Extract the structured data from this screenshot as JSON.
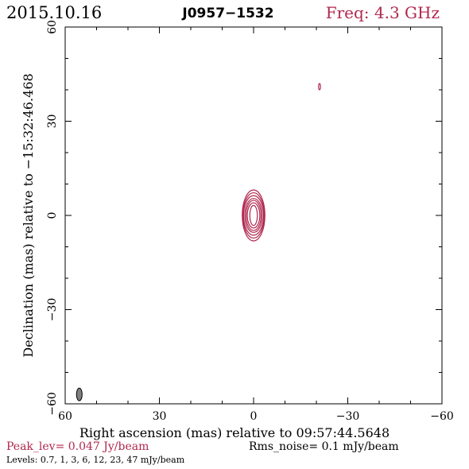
{
  "header": {
    "date": "2015.10.16",
    "source": "J0957−1532",
    "freq": "Freq: 4.3 GHz"
  },
  "footer": {
    "peak": "Peak_lev=  0.047 Jy/beam",
    "rms": "Rms_noise=   0.1 mJy/beam",
    "levels": "Levels: 0.7,    1,    3,    6,   12,   23,   47  mJy/beam"
  },
  "colors": {
    "contour": "#b0284e",
    "axis": "#000000",
    "beam_fill": "#808080"
  },
  "chart_data": {
    "type": "contour",
    "title": "J0957−1532",
    "xlabel": "Right ascension (mas) relative to 09:57:44.5648",
    "ylabel": "Declination (mas) relative to −15:32:46.468",
    "xlim": [
      60,
      -60
    ],
    "ylim": [
      -60,
      60
    ],
    "x_ticks": [
      60,
      30,
      0,
      -30,
      -60
    ],
    "y_ticks": [
      60,
      30,
      0,
      -30,
      -60
    ],
    "x_tick_labels": [
      "60",
      "30",
      "0",
      "−30",
      "−60"
    ],
    "y_tick_labels": [
      "60",
      "30",
      "0",
      "−30",
      "−60"
    ],
    "levels_mJy": [
      0.7,
      1,
      3,
      6,
      12,
      23,
      47
    ],
    "peak_Jy_per_beam": 0.047,
    "rms_mJy_per_beam": 0.1,
    "components": [
      {
        "x": 0,
        "y": 0,
        "contours": [
          {
            "a": 1.2,
            "b": 3.2
          },
          {
            "a": 2.0,
            "b": 4.0
          },
          {
            "a": 2.4,
            "b": 4.8
          },
          {
            "a": 2.8,
            "b": 5.4
          },
          {
            "a": 3.2,
            "b": 6.3
          },
          {
            "a": 3.4,
            "b": 7.2
          },
          {
            "a": 3.6,
            "b": 8.1
          }
        ]
      },
      {
        "x": -21,
        "y": 41,
        "contours": [
          {
            "a": 0.3,
            "b": 1.0
          }
        ]
      }
    ],
    "beam": {
      "x": 55.5,
      "y": -57,
      "a": 0.9,
      "b": 2.0
    }
  }
}
